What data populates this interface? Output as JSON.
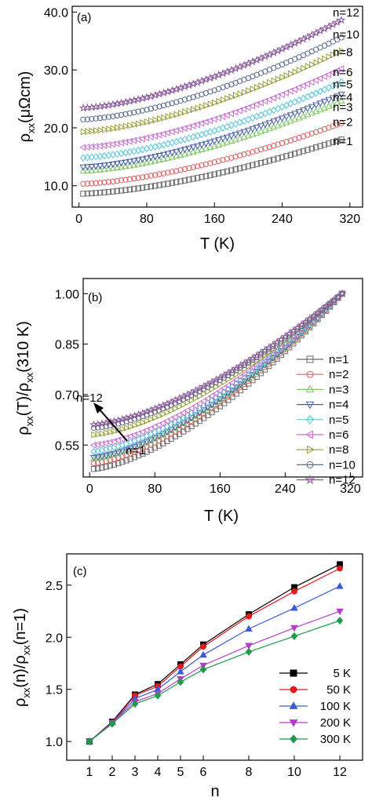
{
  "colors": {
    "n1": "#6b6b6b",
    "n2": "#e06060",
    "n3": "#7fc56a",
    "n4": "#4a5fa8",
    "n5": "#57c6e0",
    "n6": "#c86fd0",
    "n8": "#98a03a",
    "n10": "#5b6e8c",
    "n12": "#8a5a9a",
    "K5": "#000000",
    "K50": "#e41a1c",
    "K100": "#3b5bd6",
    "K200": "#b03fc4",
    "K300": "#1f9a4a"
  },
  "chart_data": [
    {
      "type": "scatter",
      "panel_label": "(a)",
      "xlabel": "T (K)",
      "ylabel_main": "ρ",
      "ylabel_sub": "xx",
      "ylabel_rest": "(μΩcm)",
      "xlim": [
        -8,
        335
      ],
      "ylim": [
        6.3,
        41.0
      ],
      "xticks": [
        "0",
        "80",
        "160",
        "240",
        "320"
      ],
      "yticks": [
        "10.0",
        "20.0",
        "30.0",
        "40.0"
      ],
      "series": [
        {
          "name": "n=1",
          "color_key": "n1",
          "marker": "square",
          "rho0": 8.6,
          "rho310": 18.0
        },
        {
          "name": "n=2",
          "color_key": "n2",
          "marker": "circle",
          "rho0": 10.3,
          "rho310": 20.8
        },
        {
          "name": "n=3",
          "color_key": "n3",
          "marker": "triangle-up",
          "rho0": 12.5,
          "rho310": 24.6
        },
        {
          "name": "n=4",
          "color_key": "n4",
          "marker": "triangle-down",
          "rho0": 13.2,
          "rho310": 25.8
        },
        {
          "name": "n=5",
          "color_key": "n5",
          "marker": "diamond",
          "rho0": 14.8,
          "rho310": 27.9
        },
        {
          "name": "n=6",
          "color_key": "n6",
          "marker": "triangle-left",
          "rho0": 16.6,
          "rho310": 30.2
        },
        {
          "name": "n=8",
          "color_key": "n8",
          "marker": "triangle-right",
          "rho0": 19.3,
          "rho310": 33.3
        },
        {
          "name": "n=10",
          "color_key": "n10",
          "marker": "circle",
          "rho0": 21.4,
          "rho310": 35.6
        },
        {
          "name": "n=12",
          "color_key": "n12",
          "marker": "star",
          "rho0": 23.4,
          "rho310": 38.6
        }
      ],
      "series_labels": [
        {
          "text": "n=12",
          "y": 39.9
        },
        {
          "text": "n=10",
          "y": 36.1
        },
        {
          "text": "n=8",
          "y": 33.1
        },
        {
          "text": "n=6",
          "y": 29.6
        },
        {
          "text": "n=5",
          "y": 27.5
        },
        {
          "text": "n=4",
          "y": 25.3
        },
        {
          "text": "n=3",
          "y": 23.6
        },
        {
          "text": "n=2",
          "y": 21.0
        },
        {
          "text": "n=1",
          "y": 17.7
        }
      ]
    },
    {
      "type": "scatter",
      "panel_label": "(b)",
      "xlabel": "T (K)",
      "ylabel_main": "ρ",
      "ylabel_sub": "xx",
      "ylabel_mid": "(T)/ρ",
      "ylabel_sub2": "xx",
      "ylabel_rest": "(310 K)",
      "xlim": [
        -8,
        335
      ],
      "ylim": [
        0.455,
        1.045
      ],
      "xticks": [
        "0",
        "80",
        "160",
        "240",
        "320"
      ],
      "yticks": [
        "0.55",
        "0.70",
        "0.85",
        "1.00"
      ],
      "legend_position": "right",
      "arrow_labels": {
        "from": "n=1",
        "to": "n=12"
      },
      "series": [
        {
          "name": "n=1",
          "color_key": "n1",
          "marker": "square",
          "r0": 0.478
        },
        {
          "name": "n=2",
          "color_key": "n2",
          "marker": "circle",
          "r0": 0.495
        },
        {
          "name": "n=3",
          "color_key": "n3",
          "marker": "triangle-up",
          "r0": 0.508
        },
        {
          "name": "n=4",
          "color_key": "n4",
          "marker": "triangle-down",
          "r0": 0.512
        },
        {
          "name": "n=5",
          "color_key": "n5",
          "marker": "diamond",
          "r0": 0.53
        },
        {
          "name": "n=6",
          "color_key": "n6",
          "marker": "triangle-left",
          "r0": 0.549
        },
        {
          "name": "n=8",
          "color_key": "n8",
          "marker": "triangle-right",
          "r0": 0.58
        },
        {
          "name": "n=10",
          "color_key": "n10",
          "marker": "circle",
          "r0": 0.6
        },
        {
          "name": "n=12",
          "color_key": "n12",
          "marker": "star",
          "r0": 0.61
        }
      ]
    },
    {
      "type": "line",
      "panel_label": "(c)",
      "xlabel": "n",
      "ylabel_main": "ρ",
      "ylabel_sub": "xx",
      "ylabel_mid": "(n)/ρ",
      "ylabel_sub2": "xx",
      "ylabel_rest": "(n=1)",
      "xlim": [
        0,
        13
      ],
      "ylim": [
        0.82,
        2.8
      ],
      "x": [
        1,
        2,
        3,
        4,
        5,
        6,
        8,
        10,
        12
      ],
      "xticks": [
        "1",
        "2",
        "3",
        "4",
        "5",
        "6",
        "8",
        "10",
        "12"
      ],
      "yticks": [
        "1.0",
        "1.5",
        "2.0",
        "2.5"
      ],
      "legend_position": "bottom-right",
      "series": [
        {
          "name": "5 K",
          "color_key": "K5",
          "marker": "square",
          "values": [
            1.0,
            1.19,
            1.45,
            1.55,
            1.74,
            1.93,
            2.22,
            2.48,
            2.7
          ]
        },
        {
          "name": "50 K",
          "color_key": "K50",
          "marker": "circle",
          "values": [
            1.0,
            1.18,
            1.44,
            1.53,
            1.72,
            1.91,
            2.2,
            2.44,
            2.66
          ]
        },
        {
          "name": "100 K",
          "color_key": "K100",
          "marker": "triangle-up",
          "values": [
            1.0,
            1.18,
            1.41,
            1.5,
            1.67,
            1.83,
            2.08,
            2.28,
            2.49
          ]
        },
        {
          "name": "200 K",
          "color_key": "K200",
          "marker": "triangle-down",
          "values": [
            1.0,
            1.18,
            1.38,
            1.46,
            1.6,
            1.73,
            1.92,
            2.09,
            2.25
          ]
        },
        {
          "name": "300 K",
          "color_key": "K300",
          "marker": "diamond",
          "values": [
            1.0,
            1.17,
            1.36,
            1.44,
            1.57,
            1.69,
            1.86,
            2.01,
            2.16
          ]
        }
      ]
    }
  ]
}
